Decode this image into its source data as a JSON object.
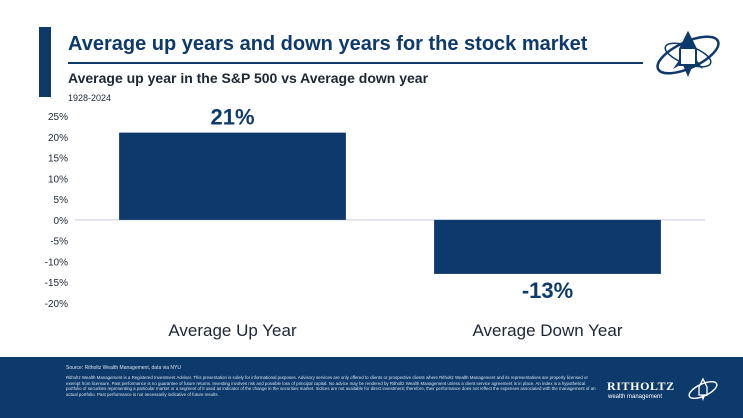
{
  "header": {
    "title": "Average up years and down years for the stock market",
    "subtitle": "Average up year in the S&P 500 vs Average down year",
    "date_range": "1928-2024"
  },
  "logo": {
    "icon": "rocket-emblem-icon"
  },
  "chart_data": {
    "type": "bar",
    "categories": [
      "Average Up Year",
      "Average Down Year"
    ],
    "values": [
      21,
      -13
    ],
    "data_labels": [
      "21%",
      "-13%"
    ],
    "ylim": [
      -20,
      25
    ],
    "y_ticks": [
      25,
      20,
      15,
      10,
      5,
      0,
      -5,
      -10,
      -15,
      -20
    ],
    "y_tick_labels": [
      "25%",
      "20%",
      "15%",
      "10%",
      "5%",
      "0%",
      "-5%",
      "-10%",
      "-15%",
      "-20%"
    ],
    "grid": false,
    "bar_color": "#0e3a6b"
  },
  "footer": {
    "source": "Source: Ritholtz Wealth Management, data via NYU",
    "disclaimer": "Ritholtz Wealth Management is a Registered Investment Adviser. This presentation is solely for informational purposes. Advisory services are only offered to clients or prospective clients where Ritholtz Wealth Management and its representatives are properly licensed or exempt from licensure. Past performance is no guarantee of future returns. Investing involves risk and possible loss of principal capital. No advice may be rendered by Ritholtz Wealth Management unless a client service agreement is in place. An index is a hypothetical portfolio of securities representing a particular market or a segment of it used as indicator of the change in the securities market. Indices are not available for direct investment; therefore, their performance does not reflect the expenses associated with the management of an actual portfolio. Past performance is not necessarily indicative of future results.",
    "brand_name": "RITHOLTZ",
    "brand_sub": "wealth management",
    "brand_icon": "rocket-emblem-icon"
  },
  "colors": {
    "navy": "#0e3a6b",
    "text_dark": "#1c2733",
    "background": "#ffffff"
  }
}
